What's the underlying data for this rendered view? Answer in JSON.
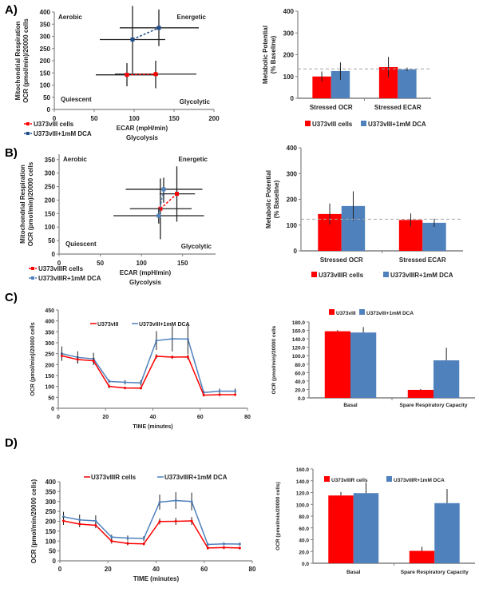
{
  "panels": [
    {
      "label": "A)"
    },
    {
      "label": "B)"
    },
    {
      "label": "C)"
    },
    {
      "label": "D)"
    }
  ],
  "colors": {
    "red": "#ff0000",
    "blue": "#4f81bd",
    "blue_dark": "#1f4e8c",
    "axis": "#808080",
    "err": "#222222",
    "dash": "#a6a6a6"
  },
  "chart_data": [
    {
      "id": "A-scatter",
      "type": "scatter",
      "xlabel": "ECAR (mpH/min)",
      "xlabel2": "Glycolysis",
      "ylabel": "Mitochondrial Respiration",
      "ylabel2": "OCR (pmol/min)/20000 cells",
      "xlim": [
        0,
        200
      ],
      "ylim": [
        0,
        400
      ],
      "xticks": [
        0,
        50,
        100,
        150,
        200
      ],
      "yticks": [
        0,
        50,
        100,
        150,
        200,
        250,
        300,
        350,
        400
      ],
      "quadrants": {
        "top_left": "Aerobic",
        "top_right": "Energetic",
        "bottom_left": "Quiescent",
        "bottom_right": "Glycolytic"
      },
      "legend_position": "bottom-left",
      "series": [
        {
          "name": "U373vIII cells",
          "color": "red",
          "points": [
            {
              "x": 91,
              "y": 142,
              "xerr": [
                52,
                130
              ],
              "yerr": [
                95,
                190
              ]
            },
            {
              "x": 127,
              "y": 145,
              "xerr": [
                76,
                178
              ],
              "yerr": [
                87,
                200
              ]
            }
          ]
        },
        {
          "name": "U373vIII+1mM DCA",
          "color": "blue_dark",
          "points": [
            {
              "x": 98,
              "y": 287,
              "xerr": [
                57,
                139
              ],
              "yerr": [
                148,
                425
              ]
            },
            {
              "x": 131,
              "y": 335,
              "xerr": [
                82,
                181
              ],
              "yerr": [
                260,
                410
              ]
            }
          ]
        }
      ]
    },
    {
      "id": "A-bar",
      "type": "bar",
      "ylabel": "Metabolic Potential",
      "ylabel2": "(% Baseline)",
      "ylim": [
        0,
        400
      ],
      "yticks": [
        0,
        100,
        200,
        300,
        400
      ],
      "categories": [
        "Stressed OCR",
        "Stressed ECAR"
      ],
      "baseline": 135,
      "legend_position": "bottom",
      "series": [
        {
          "name": "U373vIII cells",
          "color": "red",
          "values": [
            100,
            143
          ],
          "errors": [
            23,
            47
          ]
        },
        {
          "name": "U373vIII+1mM DCA",
          "color": "blue",
          "values": [
            125,
            133
          ],
          "errors": [
            40,
            8
          ]
        }
      ]
    },
    {
      "id": "B-scatter",
      "type": "scatter",
      "xlabel": "ECAR (mpH/min)",
      "xlabel2": "Glycolysis",
      "ylabel": "Mitochondrial Respiration",
      "ylabel2": "OCR (pmol/min)/20000 cells",
      "xlim": [
        0,
        190
      ],
      "ylim": [
        0,
        370
      ],
      "xticks": [
        0,
        50,
        100,
        150
      ],
      "yticks": [
        0,
        50,
        100,
        150,
        200,
        250,
        300,
        350
      ],
      "quadrants": {
        "top_left": "Aerobic",
        "top_right": "Energetic",
        "bottom_left": "Quiescent",
        "bottom_right": "Glycolytic"
      },
      "legend_position": "bottom-left",
      "series": [
        {
          "name": "U373vIIIR cells",
          "color": "red",
          "points": [
            {
              "x": 123,
              "y": 168,
              "xerr": [
                86,
                161
              ],
              "yerr": [
                55,
                280
              ]
            },
            {
              "x": 143,
              "y": 223,
              "xerr": [
                122,
                165
              ],
              "yerr": [
                120,
                325
              ]
            }
          ]
        },
        {
          "name": "U373vIIIR+1mM DCA",
          "color": "blue",
          "points": [
            {
              "x": 121,
              "y": 142,
              "xerr": [
                66,
                176
              ],
              "yerr": [
                113,
                170
              ]
            },
            {
              "x": 127,
              "y": 240,
              "xerr": [
                81,
                174
              ],
              "yerr": [
                190,
                283
              ]
            }
          ]
        }
      ]
    },
    {
      "id": "B-bar",
      "type": "bar",
      "ylabel": "Metabolic Potential",
      "ylabel2": "(% Baseline)",
      "ylim": [
        0,
        400
      ],
      "yticks": [
        0,
        100,
        200,
        300,
        400
      ],
      "categories": [
        "Stressed OCR",
        "Stressed ECAR"
      ],
      "baseline": 123,
      "legend_position": "bottom",
      "series": [
        {
          "name": "U373vIIIR cells",
          "color": "red",
          "values": [
            143,
            120
          ],
          "errors": [
            41,
            25
          ]
        },
        {
          "name": "U373vIIIR+1mM DCA",
          "color": "blue",
          "values": [
            174,
            109
          ],
          "errors": [
            57,
            16
          ]
        }
      ]
    },
    {
      "id": "C-line",
      "type": "line",
      "xlabel": "TIME (minutes)",
      "ylabel": "OCR (pmol/min)/20000 cells",
      "xlim": [
        0,
        80
      ],
      "ylim": [
        0,
        450
      ],
      "xticks": [
        0,
        20,
        40,
        60,
        80
      ],
      "yticks": [
        0,
        50,
        100,
        150,
        200,
        250,
        300,
        350,
        400,
        450
      ],
      "x": [
        1.5,
        8.2,
        14.9,
        21.5,
        28.2,
        34.9,
        41.5,
        48.2,
        54.8,
        61.5,
        68.2,
        74.8
      ],
      "legend_position": "top",
      "series": [
        {
          "name": "U373vIII",
          "color": "red",
          "values": [
            240,
            223,
            217,
            100,
            93,
            92,
            238,
            234,
            235,
            60,
            62,
            62
          ],
          "errors": [
            20,
            18,
            15,
            8,
            6,
            6,
            10,
            8,
            12,
            6,
            6,
            6
          ]
        },
        {
          "name": "U373vIII+1mM DCA",
          "color": "blue",
          "values": [
            250,
            233,
            226,
            123,
            119,
            116,
            310,
            318,
            317,
            72,
            78,
            78
          ],
          "errors": [
            33,
            28,
            28,
            8,
            10,
            12,
            43,
            58,
            68,
            8,
            12,
            12
          ]
        }
      ]
    },
    {
      "id": "C-bar",
      "type": "bar",
      "ylabel": "OCR (pmol/min)/20000 cells",
      "ylim": [
        0,
        180
      ],
      "yticks": [
        "0.0",
        "20.0",
        "40.0",
        "60.0",
        "80.0",
        "100.0",
        "120.0",
        "140.0",
        "160.0",
        "180.0"
      ],
      "categories": [
        "Basal",
        "Spare Respiratory Capacity"
      ],
      "legend_position": "top",
      "series": [
        {
          "name": "U373vIII",
          "color": "red",
          "values": [
            158,
            19
          ],
          "errors": [
            3,
            2
          ]
        },
        {
          "name": "U373vIII+1mM DCA",
          "color": "blue",
          "values": [
            155,
            89
          ],
          "errors": [
            13,
            30
          ]
        }
      ]
    },
    {
      "id": "D-line",
      "type": "line",
      "xlabel": "TIME (minutes)",
      "ylabel": "OCR (pmol/min/20000 cells)",
      "xlim": [
        0,
        80
      ],
      "ylim": [
        0,
        400
      ],
      "xticks": [
        0,
        20,
        40,
        60,
        80
      ],
      "yticks": [
        0,
        50,
        100,
        150,
        200,
        250,
        300,
        350,
        400
      ],
      "x": [
        1.5,
        8.2,
        14.9,
        21.5,
        28.2,
        34.9,
        41.5,
        48.2,
        54.8,
        61.5,
        68.2,
        74.8
      ],
      "legend_position": "top",
      "series": [
        {
          "name": "U373vIIIR cells",
          "color": "red",
          "values": [
            202,
            186,
            180,
            100,
            88,
            86,
            199,
            200,
            202,
            65,
            67,
            65
          ],
          "errors": [
            20,
            16,
            15,
            13,
            10,
            8,
            15,
            18,
            20,
            8,
            8,
            8
          ]
        },
        {
          "name": "U373vIIIR+1mM DCA",
          "color": "blue",
          "values": [
            223,
            207,
            202,
            120,
            115,
            113,
            297,
            305,
            300,
            83,
            86,
            85
          ],
          "errors": [
            25,
            27,
            28,
            12,
            13,
            12,
            38,
            42,
            45,
            8,
            8,
            8
          ]
        }
      ]
    },
    {
      "id": "D-bar",
      "type": "bar",
      "ylabel": "OCR (pmol/min/20000 cells)",
      "ylim": [
        0,
        160
      ],
      "yticks": [
        "0.0",
        "20.0",
        "40.0",
        "60.0",
        "80.0",
        "100.0",
        "120.0",
        "140.0",
        "160.0"
      ],
      "categories": [
        "Basal",
        "Spare Respiratory Capacity"
      ],
      "legend_position": "top",
      "series": [
        {
          "name": "U373vIIIR cells",
          "color": "red",
          "values": [
            115,
            21
          ],
          "errors": [
            6,
            7
          ]
        },
        {
          "name": "U373vIIIR+1mM DCA",
          "color": "blue",
          "values": [
            119,
            102
          ],
          "errors": [
            18,
            24
          ]
        }
      ]
    }
  ]
}
